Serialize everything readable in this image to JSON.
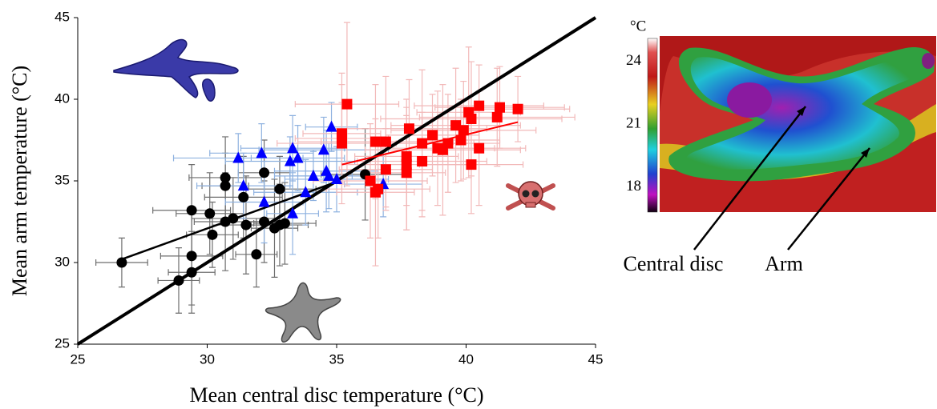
{
  "chart_data": {
    "type": "scatter",
    "xlabel": "Mean central disc temperature (°C)",
    "ylabel": "Mean arm temperature (°C)",
    "xlim": [
      25,
      45
    ],
    "ylim": [
      25,
      45
    ],
    "xticks": [
      25,
      30,
      35,
      40,
      45
    ],
    "yticks": [
      25,
      30,
      35,
      40,
      45
    ],
    "series": [
      {
        "marker": "circle",
        "color": "#000000",
        "err_color": "#6e6e6e",
        "x": [
          26.7,
          28.9,
          29.4,
          29.4,
          29.4,
          30.1,
          30.2,
          30.7,
          31.0,
          30.7,
          30.7,
          31.4,
          31.5,
          32.2,
          32.2,
          32.8,
          32.6,
          32.8,
          33.0,
          31.9,
          36.1
        ],
        "y": [
          30.0,
          28.9,
          29.4,
          30.4,
          33.2,
          33.0,
          31.7,
          32.5,
          32.7,
          34.7,
          35.2,
          34.0,
          32.3,
          35.5,
          32.5,
          34.5,
          32.1,
          32.3,
          32.4,
          30.5,
          35.4
        ],
        "x_err": [
          1.0,
          0.8,
          0.9,
          1.2,
          1.5,
          1.3,
          1.0,
          1.2,
          1.6,
          0.9,
          1.4,
          1.5,
          1.3,
          1.0,
          0.8,
          1.4,
          0.9,
          1.1,
          1.2,
          0.8,
          1.7
        ],
        "y_err": [
          1.5,
          2.0,
          2.5,
          3.0,
          2.8,
          2.5,
          2.0,
          3.0,
          2.5,
          2.0,
          2.5,
          2.5,
          3.0,
          2.0,
          2.5,
          2.0,
          3.0,
          2.5,
          2.5,
          2.0,
          2.8
        ]
      },
      {
        "marker": "triangle",
        "color": "#0000ff",
        "err_color": "#8fb2e0",
        "x": [
          31.2,
          31.4,
          32.1,
          32.2,
          33.3,
          33.2,
          33.5,
          33.3,
          33.8,
          34.1,
          34.5,
          34.6,
          34.7,
          34.8,
          35.0,
          36.8
        ],
        "y": [
          36.4,
          34.7,
          36.7,
          33.7,
          37.0,
          36.2,
          36.4,
          33.0,
          34.3,
          35.3,
          36.9,
          35.6,
          35.3,
          38.3,
          35.1,
          34.8
        ],
        "x_err": [
          2.5,
          1.8,
          2.0,
          1.5,
          2.0,
          2.5,
          1.8,
          1.0,
          2.0,
          1.5,
          2.5,
          2.0,
          1.5,
          1.0,
          2.0,
          1.5
        ],
        "y_err": [
          1.5,
          2.0,
          1.8,
          2.5,
          2.0,
          1.5,
          2.0,
          2.5,
          2.0,
          1.5,
          2.0,
          2.5,
          2.0,
          1.5,
          2.0,
          2.0
        ]
      },
      {
        "marker": "square",
        "color": "#ff0000",
        "err_color": "#f2b9b9",
        "x": [
          35.4,
          35.2,
          35.2,
          35.2,
          36.3,
          36.5,
          36.6,
          36.5,
          36.9,
          36.9,
          37.7,
          37.7,
          37.7,
          37.8,
          38.3,
          38.3,
          38.7,
          38.9,
          39.1,
          39.3,
          39.6,
          39.8,
          39.9,
          40.1,
          40.2,
          40.2,
          40.5,
          40.5,
          41.2,
          41.3,
          42.0
        ],
        "y": [
          39.7,
          37.9,
          37.3,
          37.6,
          35.0,
          34.3,
          34.5,
          37.4,
          37.4,
          35.7,
          36.5,
          36.0,
          35.5,
          38.2,
          37.3,
          36.2,
          37.8,
          37.0,
          36.9,
          37.3,
          38.4,
          37.5,
          38.1,
          39.2,
          38.8,
          36.0,
          39.6,
          37.0,
          38.9,
          39.5,
          39.4
        ],
        "x_err": [
          2.0,
          1.5,
          2.5,
          1.8,
          2.2,
          1.5,
          2.0,
          3.0,
          2.5,
          1.8,
          2.0,
          2.5,
          1.5,
          3.0,
          2.0,
          2.5,
          1.8,
          2.2,
          3.0,
          2.0,
          2.5,
          1.5,
          2.8,
          2.0,
          3.5,
          2.0,
          2.5,
          1.8,
          3.0,
          2.5,
          2.0
        ],
        "y_err": [
          5.0,
          3.0,
          2.5,
          4.0,
          3.5,
          4.5,
          3.0,
          3.5,
          4.0,
          2.5,
          3.0,
          4.0,
          3.5,
          3.0,
          4.5,
          3.0,
          2.5,
          3.5,
          4.0,
          3.0,
          3.5,
          2.5,
          3.0,
          4.0,
          3.5,
          3.0,
          2.5,
          3.5,
          3.0,
          2.5,
          2.0
        ]
      }
    ],
    "lines": [
      {
        "color": "#000000",
        "width": 4,
        "x": [
          25,
          45
        ],
        "y": [
          25,
          45
        ]
      },
      {
        "color": "#000000",
        "width": 2.5,
        "x": [
          26.7,
          35.1
        ],
        "y": [
          30.2,
          35.0
        ]
      },
      {
        "color": "#ff0000",
        "width": 2,
        "x": [
          35.2,
          42.0
        ],
        "y": [
          36.0,
          38.6
        ]
      }
    ]
  },
  "thermal_image": {
    "colorbar_label": "°C",
    "colorbar_lim": [
      16.8,
      25.1
    ],
    "colorbar_ticks": [
      24,
      21,
      18
    ],
    "annotations": [
      "Central disc",
      "Arm"
    ]
  }
}
